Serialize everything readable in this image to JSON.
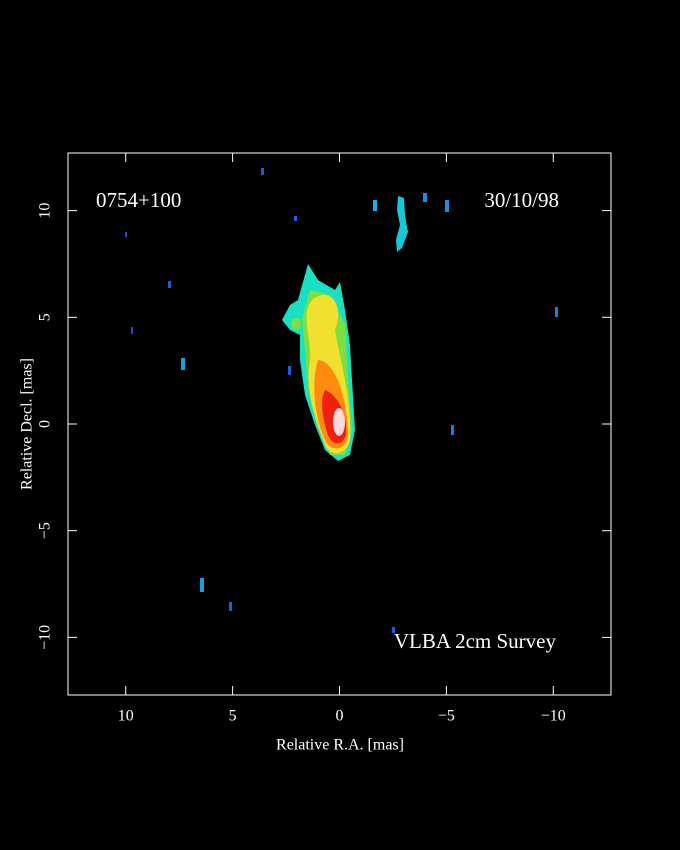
{
  "chart_data": {
    "type": "image",
    "title": "0754+100",
    "annotations": [
      "30/10/98",
      "VLBA 2cm Survey"
    ],
    "x_label": "Relative R.A. [mas]",
    "y_label": "Relative Decl. [mas]",
    "xlim": [
      12.7,
      -12.7
    ],
    "ylim": [
      -12.7,
      12.7
    ],
    "xticks": [
      10,
      5,
      0,
      {
        "value": -5,
        "label": "−5"
      },
      {
        "value": -10,
        "label": "−10"
      }
    ],
    "yticks": [
      {
        "value": -10,
        "label": "−10"
      },
      {
        "value": -5,
        "label": "−5"
      },
      0,
      5,
      10
    ]
  }
}
